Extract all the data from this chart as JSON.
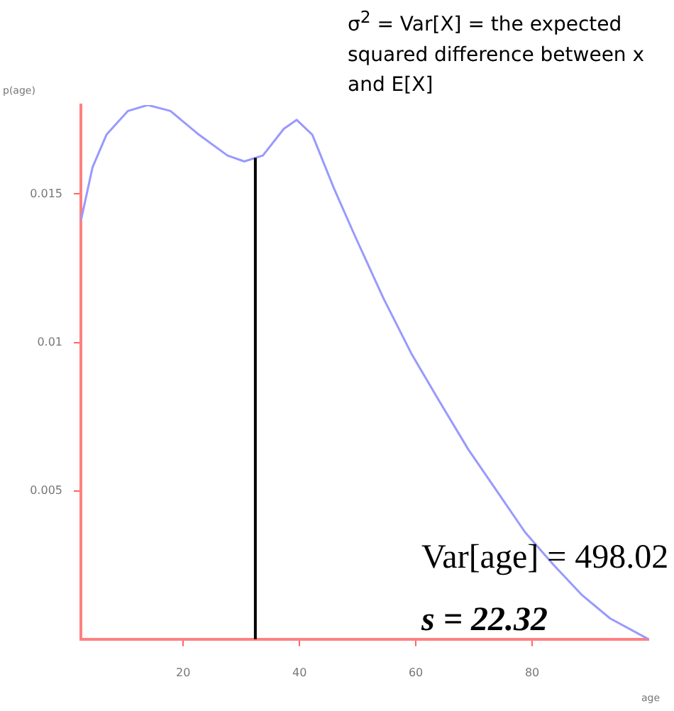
{
  "chart_data": {
    "type": "line",
    "xlabel": "age",
    "ylabel": "p(age)",
    "x": [
      2.4,
      4.4,
      6.8,
      10.5,
      13.9,
      17.8,
      22.7,
      27.6,
      30.5,
      33.7,
      37.3,
      39.5,
      42.2,
      45.9,
      49.5,
      54.4,
      59.3,
      64.1,
      69.0,
      73.9,
      78.8,
      83.7,
      88.5,
      93.4,
      100
    ],
    "series": [
      {
        "color": "#9999ff",
        "values": [
          0.0141,
          0.0159,
          0.017,
          0.0178,
          0.018,
          0.0178,
          0.017,
          0.0163,
          0.0161,
          0.0163,
          0.0172,
          0.0175,
          0.017,
          0.0152,
          0.0136,
          0.0115,
          0.0096,
          0.008,
          0.0064,
          0.005,
          0.0036,
          0.0025,
          0.0015,
          0.0007,
          0
        ]
      }
    ],
    "xlim": [
      2.4,
      100
    ],
    "xticks": [
      20,
      40,
      60,
      80
    ],
    "ylim": [
      0,
      0.018
    ],
    "yticks": [
      0.005,
      0.01,
      0.015
    ],
    "ref_lines": [
      {
        "axis": "x",
        "value": 32.4,
        "color": "#000000"
      }
    ],
    "grid": false,
    "marker": "none",
    "line_style": "solid",
    "annotations": [
      "σ$^{2}$ = Var[X] = the expected squared difference between x and E[X]",
      "Var[age] = 498.02",
      "s = 22.32"
    ]
  }
}
